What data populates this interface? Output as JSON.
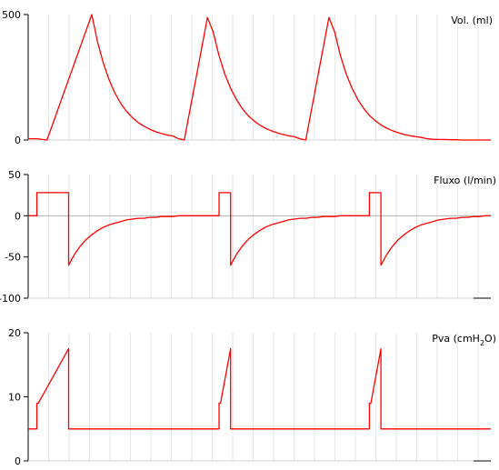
{
  "chart_data": [
    {
      "type": "line",
      "title": "",
      "series_label": "Vol. (ml)",
      "xlabel": "",
      "ylabel": "",
      "ylim": [
        0,
        500
      ],
      "yticks": [
        0,
        500
      ],
      "xlim": [
        0,
        16
      ],
      "grid": true,
      "series": [
        {
          "color": "#ff0000",
          "x": [
            0,
            0.3,
            0.65,
            2.2,
            2.4,
            2.6,
            2.8,
            3.0,
            3.2,
            3.4,
            3.6,
            3.8,
            4.0,
            4.2,
            4.4,
            4.6,
            4.8,
            5.0,
            5.2,
            5.4,
            5.6,
            5.8,
            6.0,
            6.2,
            6.4,
            6.6,
            6.8,
            7.0,
            7.2,
            7.4,
            7.6,
            7.8,
            8.0,
            8.2,
            8.4,
            8.6,
            8.8,
            9.0,
            9.2,
            9.4,
            9.6,
            9.8,
            10.0,
            10.2,
            10.4,
            10.6,
            10.8,
            11.0,
            11.2,
            11.4,
            11.6,
            11.8,
            12.0,
            12.2,
            12.4,
            12.6,
            12.8,
            13.0,
            13.2,
            13.4,
            13.6,
            13.8,
            14.0,
            14.2,
            14.4,
            14.6,
            14.8,
            15.0,
            15.2,
            15.4,
            15.6,
            15.8,
            16.0
          ],
          "y": [
            5,
            5,
            0,
            500,
            391,
            306,
            239,
            187,
            146,
            114,
            90,
            70,
            55,
            43,
            33,
            26,
            20,
            16,
            5,
            0,
            122,
            244,
            366,
            488,
            430,
            336,
            263,
            206,
            161,
            126,
            98,
            77,
            60,
            47,
            37,
            29,
            22,
            17,
            13,
            5,
            0,
            122,
            244,
            366,
            488,
            430,
            336,
            263,
            206,
            161,
            126,
            98,
            77,
            60,
            47,
            37,
            29,
            22,
            17,
            13,
            10,
            5,
            3,
            2,
            2,
            1,
            1,
            0,
            0,
            0,
            0,
            0,
            0
          ]
        }
      ]
    },
    {
      "type": "line",
      "title": "",
      "series_label": "Fluxo (l/min)",
      "xlabel": "",
      "ylabel": "",
      "ylim": [
        -100,
        50
      ],
      "yticks": [
        -100,
        -50,
        0,
        50
      ],
      "xlim": [
        0,
        16
      ],
      "grid": true,
      "series": [
        {
          "color": "#ff0000",
          "x": [
            0,
            0.3,
            0.3,
            1.4,
            1.4,
            1.6,
            1.8,
            2.0,
            2.2,
            2.4,
            2.6,
            2.8,
            3.0,
            3.2,
            3.4,
            3.6,
            3.8,
            4.0,
            4.2,
            4.4,
            4.6,
            4.8,
            5.0,
            5.2,
            5.4,
            5.6,
            5.8,
            6.0,
            6.2,
            6.4,
            6.6,
            6.6,
            7.0,
            7.0,
            7.2,
            7.4,
            7.6,
            7.8,
            8.0,
            8.2,
            8.4,
            8.6,
            8.8,
            9.0,
            9.2,
            9.4,
            9.6,
            9.8,
            10.0,
            10.2,
            10.4,
            10.6,
            10.8,
            11.0,
            11.2,
            11.4,
            11.6,
            11.8,
            11.8,
            12.2,
            12.2,
            12.4,
            12.6,
            12.8,
            13.0,
            13.2,
            13.4,
            13.6,
            13.8,
            14.0,
            14.2,
            14.4,
            14.6,
            14.8,
            15.0,
            15.2,
            15.4,
            15.6,
            15.8,
            16.0
          ],
          "y": [
            0,
            0,
            28,
            28,
            -60,
            -47,
            -37,
            -29,
            -23,
            -18,
            -14,
            -11,
            -9,
            -7,
            -5,
            -4,
            -3,
            -3,
            -2,
            -2,
            -1,
            -1,
            -1,
            0,
            0,
            0,
            0,
            0,
            0,
            0,
            0,
            28,
            28,
            -60,
            -47,
            -37,
            -29,
            -23,
            -18,
            -14,
            -11,
            -9,
            -7,
            -5,
            -4,
            -3,
            -3,
            -2,
            -2,
            -1,
            -1,
            -1,
            0,
            0,
            0,
            0,
            0,
            0,
            28,
            28,
            -60,
            -47,
            -37,
            -29,
            -23,
            -18,
            -14,
            -11,
            -9,
            -7,
            -5,
            -4,
            -3,
            -3,
            -2,
            -2,
            -1,
            -1,
            0,
            0
          ]
        }
      ]
    },
    {
      "type": "line",
      "title": "",
      "series_label_main": "Pva (cmH",
      "series_label_sub": "2",
      "series_label_end": "O)",
      "xlabel": "",
      "ylabel": "",
      "ylim": [
        0,
        20
      ],
      "yticks": [
        0,
        10,
        20
      ],
      "xlim": [
        0,
        16
      ],
      "grid": true,
      "series": [
        {
          "color": "#ff0000",
          "x": [
            0,
            0.3,
            0.3,
            0.35,
            1.4,
            1.4,
            2.6,
            6.6,
            6.6,
            6.65,
            7.0,
            7.0,
            11.8,
            11.8,
            11.85,
            12.2,
            12.2,
            16.0
          ],
          "y": [
            5,
            5,
            9,
            9,
            17.5,
            5,
            5,
            5,
            9,
            9,
            17.5,
            5,
            5,
            9,
            9,
            17.5,
            5,
            5
          ]
        }
      ]
    }
  ]
}
